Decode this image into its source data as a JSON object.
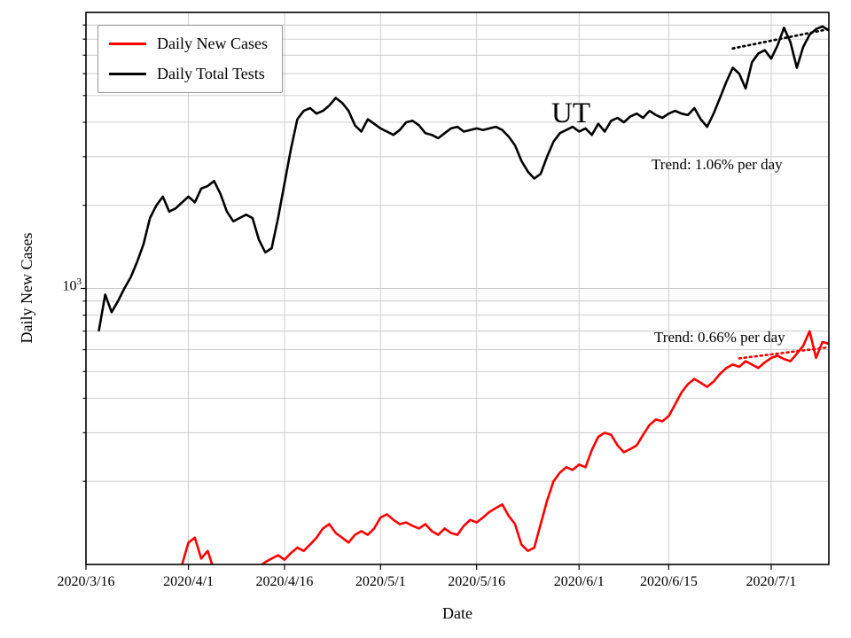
{
  "chart_data": {
    "type": "line",
    "state_label": "UT",
    "xlabel": "Date",
    "ylabel": "Daily New Cases",
    "yscale": "log",
    "xlim": [
      0,
      116
    ],
    "ylim": [
      100,
      10000
    ],
    "grid": true,
    "grid_values": [
      200,
      300,
      400,
      500,
      600,
      700,
      800,
      900,
      1000,
      2000,
      3000,
      4000,
      5000,
      6000,
      7000,
      8000,
      9000
    ],
    "x_ticks": [
      {
        "day": 0,
        "label": "2020/3/16"
      },
      {
        "day": 16,
        "label": "2020/4/1"
      },
      {
        "day": 31,
        "label": "2020/4/16"
      },
      {
        "day": 46,
        "label": "2020/5/1"
      },
      {
        "day": 61,
        "label": "2020/5/16"
      },
      {
        "day": 77,
        "label": "2020/6/1"
      },
      {
        "day": 91,
        "label": "2020/6/15"
      },
      {
        "day": 107,
        "label": "2020/7/1"
      }
    ],
    "y_ticks": [
      {
        "value": 1000,
        "mantissa": "10",
        "exponent": "3"
      }
    ],
    "annotations": [
      {
        "text": "Trend: 1.06% per day",
        "for": "Daily Total Tests"
      },
      {
        "text": "Trend: 0.66% per day",
        "for": "Daily New Cases"
      }
    ],
    "series": [
      {
        "name": "Daily New Cases",
        "color": "#ff0000",
        "style": "solid",
        "start_day": 14,
        "values": [
          95,
          100,
          120,
          125,
          105,
          112,
          95,
          88,
          85,
          88,
          90,
          92,
          95,
          98,
          102,
          105,
          108,
          104,
          110,
          115,
          112,
          118,
          125,
          135,
          140,
          130,
          125,
          120,
          128,
          132,
          128,
          135,
          148,
          152,
          145,
          140,
          142,
          138,
          135,
          140,
          132,
          128,
          135,
          130,
          128,
          138,
          145,
          142,
          148,
          155,
          160,
          165,
          150,
          140,
          118,
          112,
          115,
          140,
          170,
          200,
          215,
          225,
          220,
          230,
          225,
          260,
          290,
          300,
          295,
          270,
          255,
          262,
          270,
          295,
          320,
          335,
          330,
          345,
          380,
          420,
          450,
          470,
          455,
          440,
          460,
          490,
          515,
          530,
          520,
          545,
          530,
          515,
          540,
          560,
          570,
          555,
          545,
          580,
          620,
          700,
          560,
          640,
          630
        ]
      },
      {
        "name": "Daily Total Tests",
        "color": "#000000",
        "style": "solid",
        "start_day": 2,
        "values": [
          700,
          950,
          820,
          900,
          1000,
          1100,
          1250,
          1450,
          1800,
          2000,
          2150,
          1900,
          1950,
          2050,
          2150,
          2050,
          2300,
          2350,
          2450,
          2200,
          1900,
          1750,
          1800,
          1850,
          1800,
          1500,
          1350,
          1400,
          1800,
          2400,
          3200,
          4100,
          4400,
          4500,
          4300,
          4400,
          4600,
          4900,
          4700,
          4400,
          3900,
          3700,
          4100,
          3950,
          3800,
          3700,
          3600,
          3750,
          4000,
          4050,
          3900,
          3650,
          3600,
          3500,
          3650,
          3800,
          3850,
          3700,
          3750,
          3800,
          3750,
          3800,
          3850,
          3750,
          3550,
          3300,
          2900,
          2650,
          2500,
          2600,
          3000,
          3400,
          3650,
          3750,
          3850,
          3700,
          3800,
          3600,
          3950,
          3700,
          4050,
          4150,
          4000,
          4200,
          4300,
          4150,
          4400,
          4250,
          4150,
          4300,
          4400,
          4300,
          4250,
          4500,
          4100,
          3850,
          4300,
          4900,
          5600,
          6300,
          6000,
          5300,
          6600,
          7100,
          7300,
          6800,
          7600,
          8800,
          7800,
          6300,
          7500,
          8300,
          8700,
          8900,
          8600
        ]
      },
      {
        "name": "Tests trend (1.06% per day)",
        "color": "#000000",
        "style": "dotted",
        "points": [
          [
            101,
            7400
          ],
          [
            116,
            8700
          ]
        ]
      },
      {
        "name": "Cases trend (0.66% per day)",
        "color": "#ff0000",
        "style": "dotted",
        "points": [
          [
            102,
            558
          ],
          [
            116,
            612
          ]
        ]
      }
    ]
  }
}
